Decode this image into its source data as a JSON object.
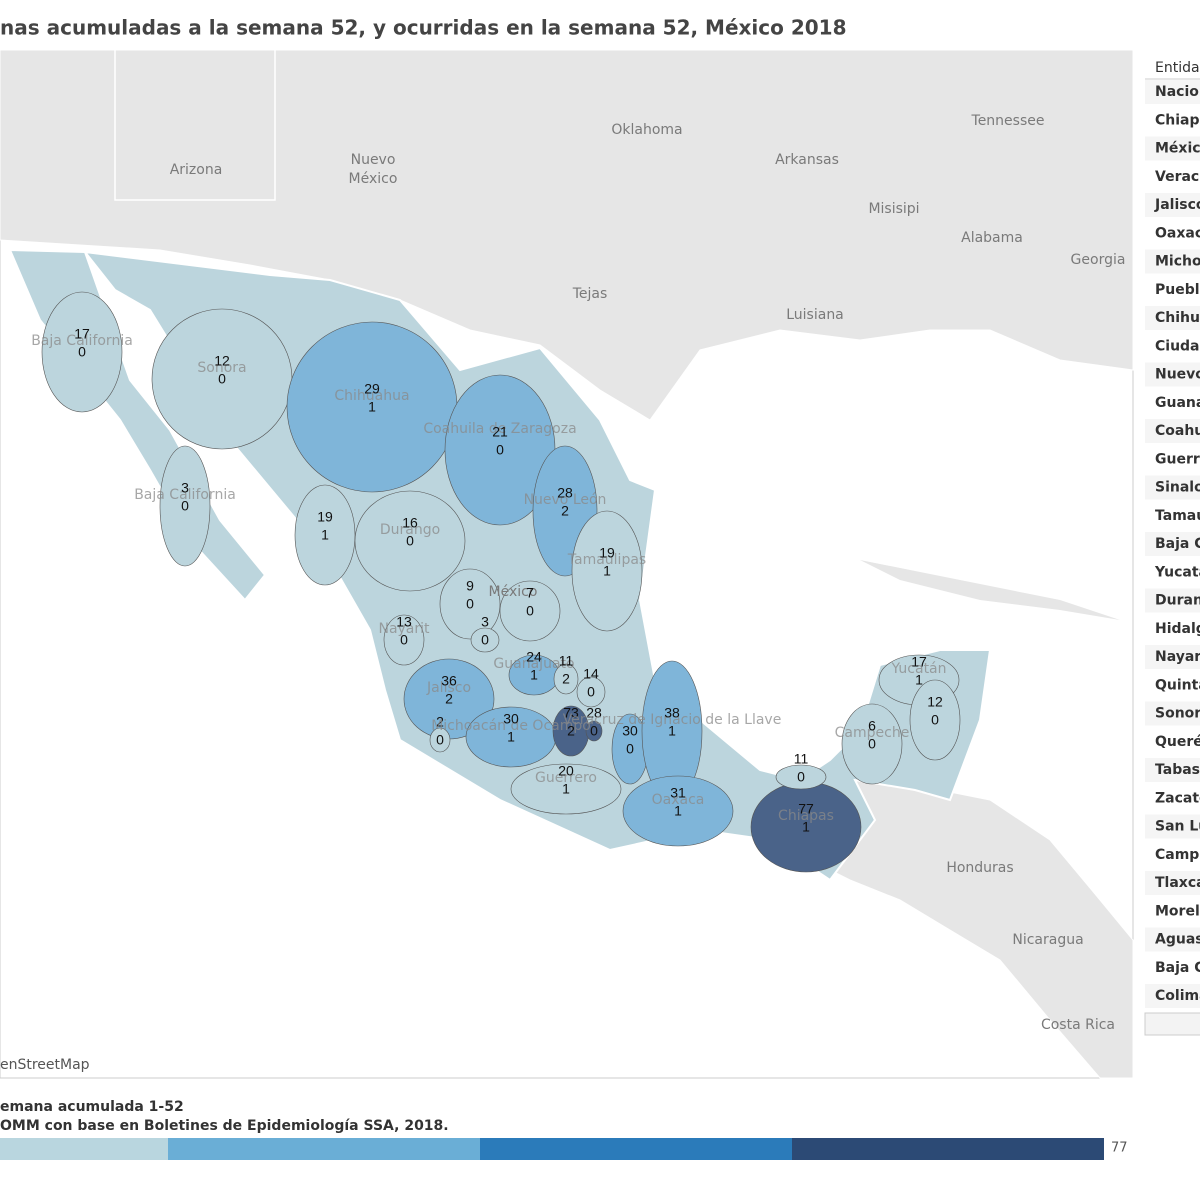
{
  "title": "nas acumuladas a la semana 52, y ocurridas en la semana 52, México 2018",
  "map_labels": [
    "Arizona",
    "Nuevo",
    "México",
    "Oklahoma",
    "Arkansas",
    "Tennessee",
    "Misisipi",
    "Alabama",
    "Georgia",
    "Tejas",
    "Luisiana",
    "México",
    "Honduras",
    "Nicaragua",
    "Costa Rica"
  ],
  "regions": [
    {
      "name": "Baja California",
      "values": [
        17,
        0
      ],
      "color": "#bcd5dd"
    },
    {
      "name": "Sonora",
      "values": [
        12,
        0
      ],
      "color": "#bcd5dd"
    },
    {
      "name": "Chihuahua",
      "values": [
        29,
        1
      ],
      "color": "#7fb5d9"
    },
    {
      "name": "Coahuila de Zaragoza",
      "values": [
        21,
        0
      ],
      "color": "#7fb5d9"
    },
    {
      "name": "Nuevo León",
      "values": [
        28,
        2
      ],
      "color": "#7fb5d9"
    },
    {
      "name": "Baja California",
      "values": [
        3,
        0
      ],
      "color": "#bcd5dd"
    },
    {
      "values": [
        19,
        1
      ],
      "color": "#bcd5dd"
    },
    {
      "name": "Durango",
      "values": [
        16,
        0
      ],
      "color": "#bcd5dd"
    },
    {
      "name": "Tamaulipas",
      "values": [
        19,
        1
      ],
      "color": "#bcd5dd"
    },
    {
      "values": [
        9,
        0
      ],
      "color": "#bcd5dd"
    },
    {
      "values": [
        7,
        0
      ],
      "color": "#bcd5dd"
    },
    {
      "name": "Nayarit",
      "values": [
        13,
        0
      ],
      "color": "#bcd5dd"
    },
    {
      "values": [
        3,
        0
      ],
      "color": "#bcd5dd"
    },
    {
      "name": "Guanajuato",
      "values": [
        24,
        1
      ],
      "color": "#7fb5d9"
    },
    {
      "values": [
        11,
        2
      ],
      "color": "#bcd5dd"
    },
    {
      "values": [
        14,
        0
      ],
      "color": "#bcd5dd"
    },
    {
      "name": "Jalisco",
      "values": [
        36,
        2
      ],
      "color": "#7fb5d9"
    },
    {
      "values": [
        2,
        0
      ],
      "color": "#bcd5dd"
    },
    {
      "name": "Michoacán de Ocampo",
      "values": [
        30,
        1
      ],
      "color": "#7fb5d9"
    },
    {
      "values": [
        73,
        2
      ],
      "color": "#4a6389"
    },
    {
      "values": [
        28,
        0
      ],
      "color": "#4a6389"
    },
    {
      "values": [
        30,
        0
      ],
      "color": "#7fb5d9"
    },
    {
      "name": "Veracruz de Ignacio de la Llave",
      "values": [
        38,
        1
      ],
      "color": "#7fb5d9"
    },
    {
      "name": "Guerrero",
      "values": [
        20,
        1
      ],
      "color": "#bcd5dd"
    },
    {
      "name": "Oaxaca",
      "values": [
        31,
        1
      ],
      "color": "#7fb5d9"
    },
    {
      "name": "Chiapas",
      "values": [
        77,
        1
      ],
      "color": "#4a6389"
    },
    {
      "values": [
        11,
        0
      ],
      "color": "#bcd5dd"
    },
    {
      "name": "Campeche",
      "values": [
        6,
        0
      ],
      "color": "#bcd5dd"
    },
    {
      "name": "Yucatán",
      "values": [
        17,
        1
      ],
      "color": "#bcd5dd"
    },
    {
      "values": [
        12,
        0
      ],
      "color": "#bcd5dd"
    }
  ],
  "attribution": "enStreetMap",
  "table": {
    "header": "Entida",
    "rows": [
      "Nacior",
      "Chiapa",
      "Méxicc",
      "Veracr",
      "Jalisco",
      "Oaxac",
      "Micho",
      "Puebla",
      "Chihua",
      "Ciudac",
      "Nuevo",
      "Guana",
      "Coahu",
      "Guerre",
      "Sinalo",
      "Tamau",
      "Baja C",
      "Yucatá",
      "Duran",
      "Hidalg",
      "Nayari",
      "Quinta",
      "Sonor",
      "Queré",
      "Tabas",
      "Zacate",
      "San Lu",
      "Campe",
      "Tlaxca",
      "Morelo",
      "Aguas",
      "Baja C",
      "Colima"
    ]
  },
  "footer": [
    "emana acumulada 1-52",
    "OMM con base en Boletines de Epidemiología SSA, 2018."
  ],
  "legend": {
    "colors": [
      "#b9d6df",
      "#6aaed6",
      "#2b7bba",
      "#2c4a75"
    ],
    "max_label": "77"
  }
}
